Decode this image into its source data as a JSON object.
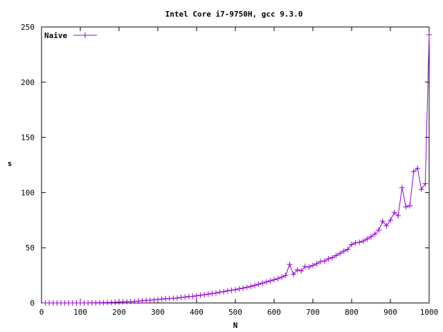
{
  "chart_data": {
    "type": "line",
    "title": "Intel Core i7-9750H, gcc 9.3.0",
    "xlabel": "N",
    "ylabel": "s",
    "xlim": [
      0,
      1000
    ],
    "ylim": [
      0,
      250
    ],
    "xticks": [
      "0",
      "100",
      "200",
      "300",
      "400",
      "500",
      "600",
      "700",
      "800",
      "900",
      "1000"
    ],
    "yticks": [
      "0",
      "50",
      "100",
      "150",
      "200",
      "250"
    ],
    "legend": "top-left",
    "grid": false,
    "color": "#9400d3",
    "series": [
      {
        "name": "Naive",
        "x": [
          10,
          20,
          30,
          40,
          50,
          60,
          70,
          80,
          90,
          100,
          110,
          120,
          130,
          140,
          150,
          160,
          170,
          180,
          190,
          200,
          210,
          220,
          230,
          240,
          250,
          260,
          270,
          280,
          290,
          300,
          310,
          320,
          330,
          340,
          350,
          360,
          370,
          380,
          390,
          400,
          410,
          420,
          430,
          440,
          450,
          460,
          470,
          480,
          490,
          500,
          510,
          520,
          530,
          540,
          550,
          560,
          570,
          580,
          590,
          600,
          610,
          620,
          630,
          640,
          650,
          660,
          670,
          680,
          690,
          700,
          710,
          720,
          730,
          740,
          750,
          760,
          770,
          780,
          790,
          800,
          810,
          820,
          830,
          840,
          850,
          860,
          870,
          880,
          890,
          900,
          910,
          920,
          930,
          940,
          950,
          960,
          970,
          980,
          990,
          1000
        ],
        "y": [
          0.0,
          0.0,
          0.0,
          0.0,
          0.0,
          0.0,
          0.0,
          0.0,
          0.0,
          0.0,
          0.0,
          0.0,
          0.1,
          0.1,
          0.2,
          0.3,
          0.4,
          0.5,
          0.6,
          0.8,
          1.0,
          1.1,
          1.2,
          1.5,
          1.7,
          2.0,
          2.3,
          2.5,
          2.8,
          3.2,
          3.5,
          3.9,
          4.0,
          4.2,
          4.5,
          5.0,
          5.3,
          5.8,
          6.0,
          6.5,
          7.0,
          7.5,
          8.0,
          8.6,
          9.0,
          9.8,
          10.2,
          11.0,
          11.5,
          12.0,
          12.8,
          13.5,
          14.2,
          15.0,
          16.0,
          17.0,
          18.0,
          19.0,
          20.0,
          21.0,
          22.0,
          23.5,
          25.0,
          35.0,
          26.0,
          30.0,
          29.0,
          33.0,
          32.5,
          34.0,
          35.5,
          37.5,
          38.0,
          40.0,
          41.0,
          43.0,
          45.0,
          47.0,
          48.5,
          53.0,
          54.5,
          55.0,
          56.0,
          58.0,
          60.0,
          62.5,
          66.0,
          74.0,
          70.0,
          75.0,
          82.0,
          79.0,
          104.5,
          87.0,
          88.0,
          119.0,
          122.0,
          103.0,
          108.0,
          243.0
        ]
      }
    ]
  }
}
